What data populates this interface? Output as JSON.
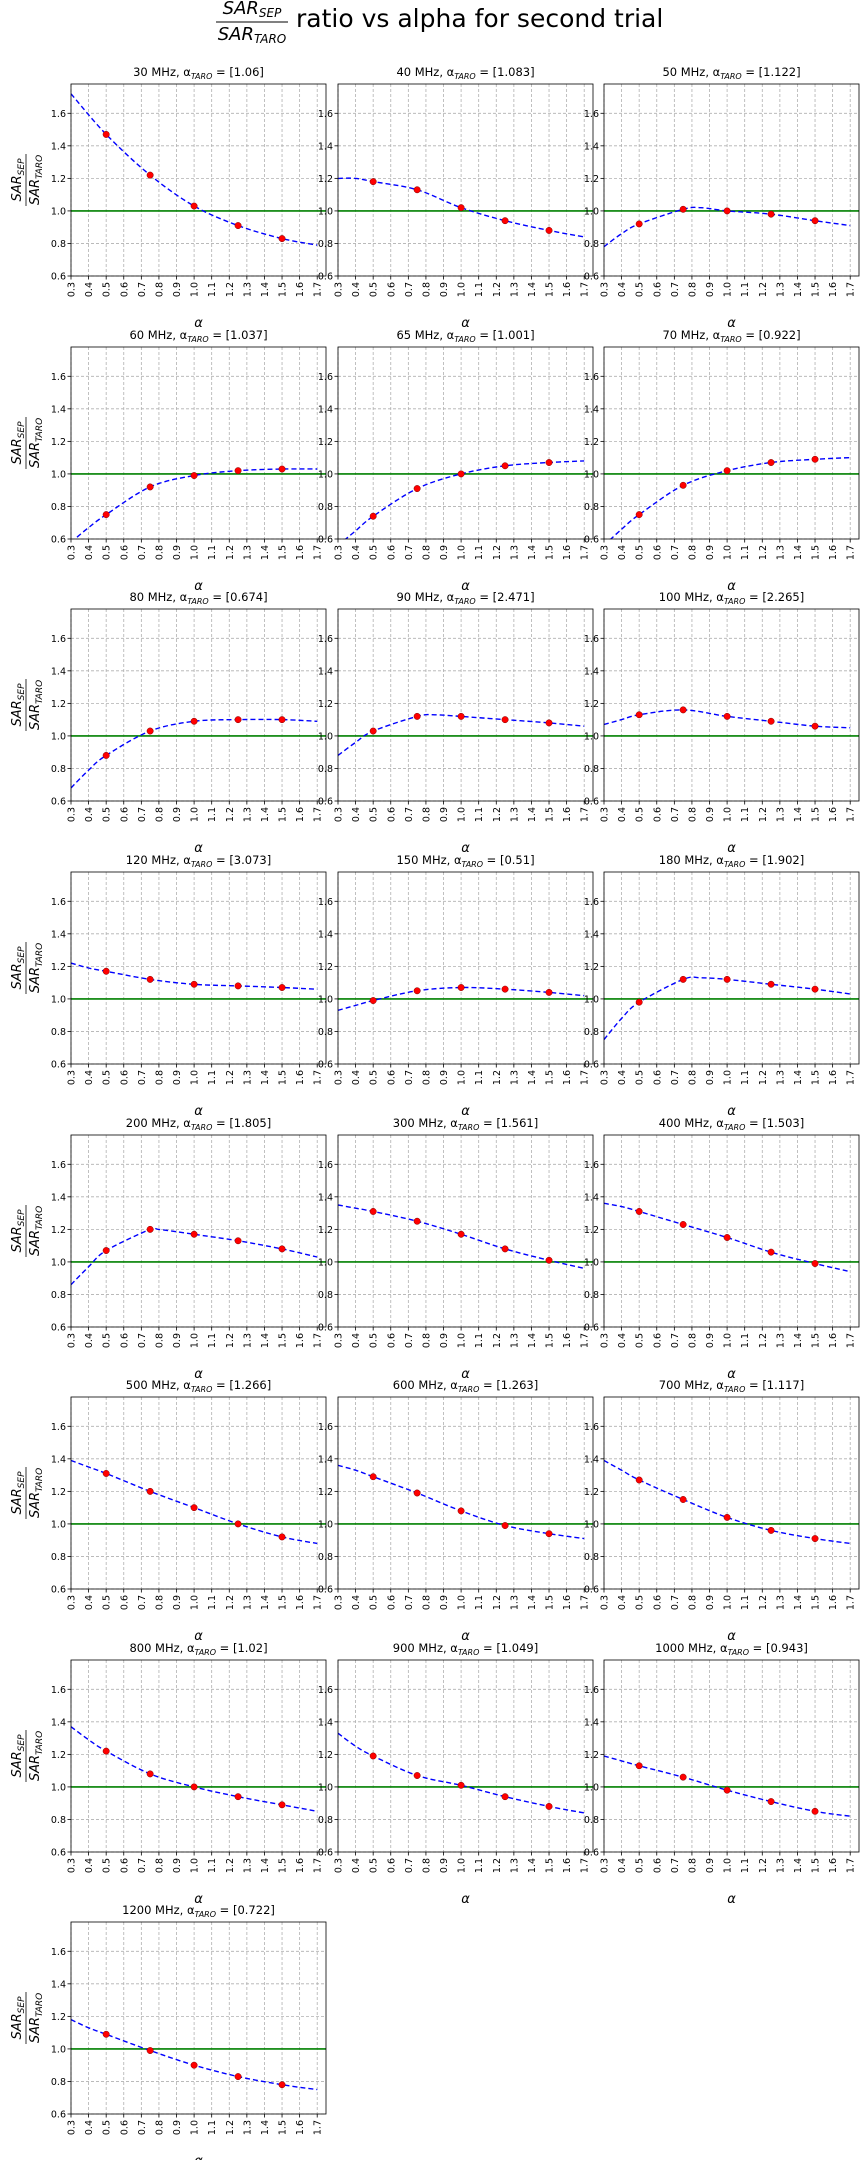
{
  "figure": {
    "title_prefix": "SAR",
    "title_num_sub": "SEP",
    "title_den_sub": "TARO",
    "title_suffix": "ratio vs alpha for second trial"
  },
  "chart_data": {
    "type": "line",
    "xlabel": "α",
    "ylabel": {
      "num": "SAR",
      "num_sub": "SEP",
      "den": "SAR",
      "den_sub": "TARO"
    },
    "xlim": [
      0.3,
      1.75
    ],
    "ylim": [
      0.6,
      1.78
    ],
    "xticks": [
      "0.3",
      "0.4",
      "0.5",
      "0.6",
      "0.7",
      "0.8",
      "0.9",
      "1.0",
      "1.1",
      "1.2",
      "1.3",
      "1.4",
      "1.5",
      "1.6",
      "1.7"
    ],
    "yticks": [
      "0.6",
      "0.8",
      "1.0",
      "1.2",
      "1.4",
      "1.6"
    ],
    "reference_line": 1.0,
    "grid": true,
    "colors": {
      "curve": "#0000ff",
      "points": "#ff0000",
      "reference": "#008000",
      "grid": "#b0b0b0"
    },
    "sample_alpha": [
      0.5,
      0.75,
      1.0,
      1.25,
      1.5
    ],
    "panels": [
      {
        "title": "30 MHz,  α",
        "sub": "TARO",
        "value": " = [1.06]",
        "points": [
          1.47,
          1.22,
          1.03,
          0.91,
          0.83
        ],
        "curve": [
          [
            0.3,
            1.72
          ],
          [
            0.5,
            1.47
          ],
          [
            0.75,
            1.22
          ],
          [
            1.0,
            1.03
          ],
          [
            1.25,
            0.91
          ],
          [
            1.5,
            0.83
          ],
          [
            1.7,
            0.79
          ]
        ]
      },
      {
        "title": "40 MHz,  α",
        "sub": "TARO",
        "value": " = [1.083]",
        "points": [
          1.18,
          1.13,
          1.02,
          0.94,
          0.88
        ],
        "curve": [
          [
            0.3,
            1.2
          ],
          [
            0.4,
            1.2
          ],
          [
            0.5,
            1.18
          ],
          [
            0.75,
            1.13
          ],
          [
            1.0,
            1.02
          ],
          [
            1.25,
            0.94
          ],
          [
            1.5,
            0.88
          ],
          [
            1.7,
            0.84
          ]
        ]
      },
      {
        "title": "50 MHz,  α",
        "sub": "TARO",
        "value": " = [1.122]",
        "points": [
          0.92,
          1.01,
          1.0,
          0.98,
          0.94
        ],
        "curve": [
          [
            0.3,
            0.78
          ],
          [
            0.4,
            0.86
          ],
          [
            0.5,
            0.92
          ],
          [
            0.75,
            1.01
          ],
          [
            0.85,
            1.02
          ],
          [
            1.0,
            1.0
          ],
          [
            1.25,
            0.98
          ],
          [
            1.5,
            0.94
          ],
          [
            1.7,
            0.91
          ]
        ]
      },
      {
        "title": "60 MHz,  α",
        "sub": "TARO",
        "value": " = [1.037]",
        "points": [
          0.75,
          0.92,
          0.99,
          1.02,
          1.03
        ],
        "curve": [
          [
            0.3,
            0.58
          ],
          [
            0.4,
            0.67
          ],
          [
            0.5,
            0.75
          ],
          [
            0.75,
            0.92
          ],
          [
            1.0,
            0.99
          ],
          [
            1.25,
            1.02
          ],
          [
            1.5,
            1.03
          ],
          [
            1.7,
            1.03
          ]
        ]
      },
      {
        "title": "65 MHz,  α",
        "sub": "TARO",
        "value": " = [1.001]",
        "points": [
          0.74,
          0.91,
          1.0,
          1.05,
          1.07
        ],
        "curve": [
          [
            0.3,
            0.56
          ],
          [
            0.4,
            0.65
          ],
          [
            0.5,
            0.74
          ],
          [
            0.75,
            0.91
          ],
          [
            1.0,
            1.0
          ],
          [
            1.25,
            1.05
          ],
          [
            1.5,
            1.07
          ],
          [
            1.7,
            1.08
          ]
        ]
      },
      {
        "title": "70 MHz,  α",
        "sub": "TARO",
        "value": " = [0.922]",
        "points": [
          0.75,
          0.93,
          1.02,
          1.07,
          1.09
        ],
        "curve": [
          [
            0.3,
            0.56
          ],
          [
            0.4,
            0.66
          ],
          [
            0.5,
            0.75
          ],
          [
            0.75,
            0.93
          ],
          [
            1.0,
            1.02
          ],
          [
            1.25,
            1.07
          ],
          [
            1.5,
            1.09
          ],
          [
            1.7,
            1.1
          ]
        ]
      },
      {
        "title": "80 MHz,  α",
        "sub": "TARO",
        "value": " = [0.674]",
        "points": [
          0.88,
          1.03,
          1.09,
          1.1,
          1.1
        ],
        "curve": [
          [
            0.3,
            0.68
          ],
          [
            0.4,
            0.79
          ],
          [
            0.5,
            0.88
          ],
          [
            0.75,
            1.03
          ],
          [
            1.0,
            1.09
          ],
          [
            1.25,
            1.1
          ],
          [
            1.5,
            1.1
          ],
          [
            1.7,
            1.09
          ]
        ]
      },
      {
        "title": "90 MHz,  α",
        "sub": "TARO",
        "value": " = [2.471]",
        "points": [
          1.03,
          1.12,
          1.12,
          1.1,
          1.08
        ],
        "curve": [
          [
            0.3,
            0.88
          ],
          [
            0.4,
            0.96
          ],
          [
            0.5,
            1.03
          ],
          [
            0.75,
            1.12
          ],
          [
            0.85,
            1.13
          ],
          [
            1.0,
            1.12
          ],
          [
            1.25,
            1.1
          ],
          [
            1.5,
            1.08
          ],
          [
            1.7,
            1.06
          ]
        ]
      },
      {
        "title": "100 MHz,  α",
        "sub": "TARO",
        "value": " = [2.265]",
        "points": [
          1.13,
          1.16,
          1.12,
          1.09,
          1.06
        ],
        "curve": [
          [
            0.3,
            1.07
          ],
          [
            0.4,
            1.1
          ],
          [
            0.5,
            1.13
          ],
          [
            0.75,
            1.16
          ],
          [
            1.0,
            1.12
          ],
          [
            1.25,
            1.09
          ],
          [
            1.5,
            1.06
          ],
          [
            1.7,
            1.05
          ]
        ]
      },
      {
        "title": "120 MHz,  α",
        "sub": "TARO",
        "value": " = [3.073]",
        "points": [
          1.17,
          1.12,
          1.09,
          1.08,
          1.07
        ],
        "curve": [
          [
            0.3,
            1.22
          ],
          [
            0.4,
            1.19
          ],
          [
            0.5,
            1.17
          ],
          [
            0.75,
            1.12
          ],
          [
            1.0,
            1.09
          ],
          [
            1.25,
            1.08
          ],
          [
            1.5,
            1.07
          ],
          [
            1.7,
            1.06
          ]
        ]
      },
      {
        "title": "150 MHz,  α",
        "sub": "TARO",
        "value": " = [0.51]",
        "points": [
          0.99,
          1.05,
          1.07,
          1.06,
          1.04
        ],
        "curve": [
          [
            0.3,
            0.93
          ],
          [
            0.4,
            0.96
          ],
          [
            0.5,
            0.99
          ],
          [
            0.75,
            1.05
          ],
          [
            1.0,
            1.07
          ],
          [
            1.25,
            1.06
          ],
          [
            1.5,
            1.04
          ],
          [
            1.7,
            1.02
          ]
        ]
      },
      {
        "title": "180 MHz,  α",
        "sub": "TARO",
        "value": " = [1.902]",
        "points": [
          0.98,
          1.12,
          1.12,
          1.09,
          1.06
        ],
        "curve": [
          [
            0.3,
            0.75
          ],
          [
            0.4,
            0.88
          ],
          [
            0.5,
            0.98
          ],
          [
            0.75,
            1.12
          ],
          [
            0.85,
            1.13
          ],
          [
            1.0,
            1.12
          ],
          [
            1.25,
            1.09
          ],
          [
            1.5,
            1.06
          ],
          [
            1.7,
            1.03
          ]
        ]
      },
      {
        "title": "200 MHz,  α",
        "sub": "TARO",
        "value": " = [1.805]",
        "points": [
          1.07,
          1.2,
          1.17,
          1.13,
          1.08
        ],
        "curve": [
          [
            0.3,
            0.86
          ],
          [
            0.4,
            0.97
          ],
          [
            0.5,
            1.07
          ],
          [
            0.75,
            1.2
          ],
          [
            0.8,
            1.2
          ],
          [
            1.0,
            1.17
          ],
          [
            1.25,
            1.13
          ],
          [
            1.5,
            1.08
          ],
          [
            1.7,
            1.03
          ]
        ]
      },
      {
        "title": "300 MHz,  α",
        "sub": "TARO",
        "value": " = [1.561]",
        "points": [
          1.31,
          1.25,
          1.17,
          1.08,
          1.01
        ],
        "curve": [
          [
            0.3,
            1.35
          ],
          [
            0.4,
            1.33
          ],
          [
            0.5,
            1.31
          ],
          [
            0.75,
            1.25
          ],
          [
            1.0,
            1.17
          ],
          [
            1.25,
            1.08
          ],
          [
            1.5,
            1.01
          ],
          [
            1.7,
            0.96
          ]
        ]
      },
      {
        "title": "400 MHz,  α",
        "sub": "TARO",
        "value": " = [1.503]",
        "points": [
          1.31,
          1.23,
          1.15,
          1.06,
          0.99
        ],
        "curve": [
          [
            0.3,
            1.36
          ],
          [
            0.4,
            1.34
          ],
          [
            0.5,
            1.31
          ],
          [
            0.75,
            1.23
          ],
          [
            1.0,
            1.15
          ],
          [
            1.25,
            1.06
          ],
          [
            1.5,
            0.99
          ],
          [
            1.7,
            0.94
          ]
        ]
      },
      {
        "title": "500 MHz,  α",
        "sub": "TARO",
        "value": " = [1.266]",
        "points": [
          1.31,
          1.2,
          1.1,
          1.0,
          0.92
        ],
        "curve": [
          [
            0.3,
            1.39
          ],
          [
            0.4,
            1.35
          ],
          [
            0.5,
            1.31
          ],
          [
            0.75,
            1.2
          ],
          [
            1.0,
            1.1
          ],
          [
            1.25,
            1.0
          ],
          [
            1.5,
            0.92
          ],
          [
            1.7,
            0.88
          ]
        ]
      },
      {
        "title": "600 MHz,  α",
        "sub": "TARO",
        "value": " = [1.263]",
        "points": [
          1.29,
          1.19,
          1.08,
          0.99,
          0.94
        ],
        "curve": [
          [
            0.3,
            1.36
          ],
          [
            0.4,
            1.33
          ],
          [
            0.5,
            1.29
          ],
          [
            0.75,
            1.19
          ],
          [
            1.0,
            1.08
          ],
          [
            1.25,
            0.99
          ],
          [
            1.5,
            0.94
          ],
          [
            1.7,
            0.91
          ]
        ]
      },
      {
        "title": "700 MHz,  α",
        "sub": "TARO",
        "value": " = [1.117]",
        "points": [
          1.27,
          1.15,
          1.04,
          0.96,
          0.91
        ],
        "curve": [
          [
            0.3,
            1.39
          ],
          [
            0.4,
            1.33
          ],
          [
            0.5,
            1.27
          ],
          [
            0.75,
            1.15
          ],
          [
            1.0,
            1.04
          ],
          [
            1.25,
            0.96
          ],
          [
            1.5,
            0.91
          ],
          [
            1.7,
            0.88
          ]
        ]
      },
      {
        "title": "800 MHz,  α",
        "sub": "TARO",
        "value": " = [1.02]",
        "points": [
          1.22,
          1.08,
          1.0,
          0.94,
          0.89
        ],
        "curve": [
          [
            0.3,
            1.37
          ],
          [
            0.4,
            1.29
          ],
          [
            0.5,
            1.22
          ],
          [
            0.75,
            1.08
          ],
          [
            1.0,
            1.0
          ],
          [
            1.25,
            0.94
          ],
          [
            1.5,
            0.89
          ],
          [
            1.7,
            0.85
          ]
        ]
      },
      {
        "title": "900 MHz,  α",
        "sub": "TARO",
        "value": " = [1.049]",
        "points": [
          1.19,
          1.07,
          1.01,
          0.94,
          0.88
        ],
        "curve": [
          [
            0.3,
            1.33
          ],
          [
            0.4,
            1.25
          ],
          [
            0.5,
            1.19
          ],
          [
            0.75,
            1.07
          ],
          [
            1.0,
            1.01
          ],
          [
            1.25,
            0.94
          ],
          [
            1.5,
            0.88
          ],
          [
            1.7,
            0.84
          ]
        ]
      },
      {
        "title": "1000 MHz,  α",
        "sub": "TARO",
        "value": " = [0.943]",
        "points": [
          1.13,
          1.06,
          0.98,
          0.91,
          0.85
        ],
        "curve": [
          [
            0.3,
            1.19
          ],
          [
            0.4,
            1.16
          ],
          [
            0.5,
            1.13
          ],
          [
            0.75,
            1.06
          ],
          [
            1.0,
            0.98
          ],
          [
            1.25,
            0.91
          ],
          [
            1.5,
            0.85
          ],
          [
            1.7,
            0.82
          ]
        ]
      },
      {
        "title": "1200 MHz,  α",
        "sub": "TARO",
        "value": " = [0.722]",
        "points": [
          1.09,
          0.99,
          0.9,
          0.83,
          0.78
        ],
        "curve": [
          [
            0.3,
            1.18
          ],
          [
            0.4,
            1.13
          ],
          [
            0.5,
            1.09
          ],
          [
            0.75,
            0.99
          ],
          [
            1.0,
            0.9
          ],
          [
            1.25,
            0.83
          ],
          [
            1.5,
            0.78
          ],
          [
            1.7,
            0.75
          ]
        ]
      }
    ]
  }
}
